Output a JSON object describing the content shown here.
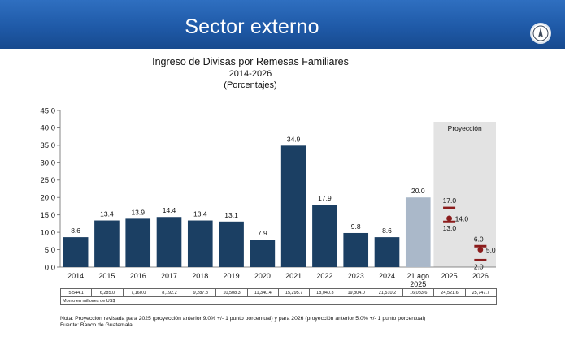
{
  "header": {
    "title": "Sector externo"
  },
  "chart_data": {
    "type": "bar",
    "title": "Ingreso de Divisas por Remesas Familiares",
    "subtitle": "2014-2026",
    "units": "(Porcentajes)",
    "categories": [
      "2014",
      "2015",
      "2016",
      "2017",
      "2018",
      "2019",
      "2020",
      "2021",
      "2022",
      "2023",
      "2024",
      "21 ago 2025",
      "2025",
      "2026"
    ],
    "bars": [
      {
        "category": "2014",
        "value": 8.6,
        "label": "8.6"
      },
      {
        "category": "2015",
        "value": 13.4,
        "label": "13.4"
      },
      {
        "category": "2016",
        "value": 13.9,
        "label": "13.9"
      },
      {
        "category": "2017",
        "value": 14.4,
        "label": "14.4"
      },
      {
        "category": "2018",
        "value": 13.4,
        "label": "13.4"
      },
      {
        "category": "2019",
        "value": 13.1,
        "label": "13.1"
      },
      {
        "category": "2020",
        "value": 7.9,
        "label": "7.9"
      },
      {
        "category": "2021",
        "value": 34.9,
        "label": "34.9"
      },
      {
        "category": "2022",
        "value": 17.9,
        "label": "17.9"
      },
      {
        "category": "2023",
        "value": 9.8,
        "label": "9.8"
      },
      {
        "category": "2024",
        "value": 8.6,
        "label": "8.6"
      },
      {
        "category": "21 ago 2025",
        "value": 20.0,
        "label": "20.0"
      }
    ],
    "projections": [
      {
        "category": "2025",
        "point": 14.0,
        "point_label": "14.0",
        "upper": 17.0,
        "upper_label": "17.0",
        "lower": 13.0,
        "lower_label": "13.0"
      },
      {
        "category": "2026",
        "point": 5.0,
        "point_label": "5.0",
        "upper": 6.0,
        "upper_label": "6.0",
        "lower": 2.0,
        "lower_label": "2.0"
      }
    ],
    "projection_label": "Proyección",
    "ylim": [
      0,
      45
    ],
    "yticks": [
      "0.0",
      "5.0",
      "10.0",
      "15.0",
      "20.0",
      "25.0",
      "30.0",
      "35.0",
      "40.0",
      "45.0"
    ],
    "grid": false,
    "colors": {
      "bar": "#1b3f63",
      "bar_partial": "#aab8c9",
      "projection_band": "#e3e3e3",
      "projection_marker": "#8b1c1c"
    }
  },
  "table": {
    "amounts": [
      "5,544.1",
      "6,285.0",
      "7,160.0",
      "8,192.2",
      "9,287.8",
      "10,508.3",
      "11,340.4",
      "15,295.7",
      "18,040.3",
      "19,804.0",
      "21,510.2",
      "16,083.6",
      "24,521.6",
      "25,747.7"
    ],
    "note": "Monto en millones de US$"
  },
  "footnote": {
    "note": "Nota: Proyección revisada para 2025 (proyección anterior 9.0% +/- 1 punto porcentual) y para 2026 (proyección anterior 5.0% +/- 1 punto porcentual)",
    "source": "Fuente: Banco de Guatemala"
  }
}
